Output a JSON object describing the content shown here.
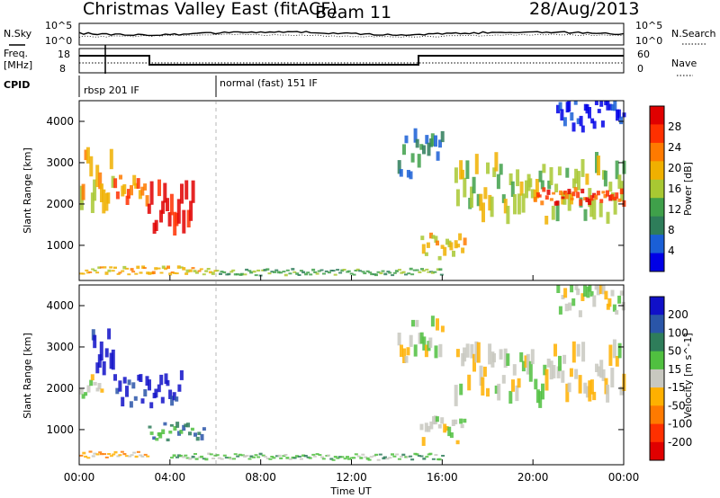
{
  "header": {
    "title": "Christmas Valley East (fitACF)",
    "beam": "Beam 11",
    "date": "28/Aug/2013"
  },
  "noise_panel": {
    "left_label": "N.Sky",
    "right_label": "N.Search",
    "left_ticks": [
      "10^5",
      "10^0"
    ],
    "right_ticks": [
      "10^5",
      "10^0"
    ]
  },
  "freq_panel": {
    "left_label_1": "Freq.",
    "left_label_2": "[MHz]",
    "left_ticks": [
      "18",
      "8"
    ],
    "right_ticks": [
      "60",
      "0"
    ],
    "right_label": "Nave"
  },
  "cpid": {
    "label": "CPID",
    "modes": [
      "rbsp 201 IF",
      "normal (fast) 151 IF"
    ]
  },
  "colors": {
    "power_scale": [
      "#0000e6",
      "#1a5fd6",
      "#2e7d5a",
      "#3fa04a",
      "#a8c832",
      "#f0b000",
      "#ff7a00",
      "#ff3000",
      "#e00000"
    ],
    "velocity_scale": [
      "#1010c8",
      "#2a55a8",
      "#2e7d5a",
      "#50c040",
      "#c8c8c0",
      "#ffb000",
      "#ff7a00",
      "#ff3000",
      "#e00000"
    ]
  },
  "chart_data": [
    {
      "type": "heatmap",
      "name_in_image": "Power",
      "ylabel": "Slant Range [km]",
      "y_ticks": [
        "1000",
        "2000",
        "3000",
        "4000"
      ],
      "ylim": [
        150,
        4500
      ],
      "colorbar_label": "Power [dB]",
      "colorbar_ticks": [
        "4",
        "8",
        "12",
        "16",
        "20",
        "24",
        "28"
      ],
      "blobs": [
        {
          "t0": 0.0,
          "t1": 1.5,
          "r0": 1700,
          "r1": 3300,
          "level": 5
        },
        {
          "t0": 1.5,
          "t1": 3.0,
          "r0": 1900,
          "r1": 2600,
          "level": 6
        },
        {
          "t0": 3.0,
          "t1": 5.0,
          "r0": 900,
          "r1": 2400,
          "level": 8
        },
        {
          "t0": 0.0,
          "t1": 6.0,
          "r0": 250,
          "r1": 450,
          "level": 5
        },
        {
          "t0": 6.0,
          "t1": 16.0,
          "r0": 250,
          "r1": 400,
          "level": 3
        },
        {
          "t0": 14.0,
          "t1": 16.0,
          "r0": 2600,
          "r1": 3500,
          "level": 2
        },
        {
          "t0": 16.5,
          "t1": 24.0,
          "r0": 1500,
          "r1": 2800,
          "level": 4
        },
        {
          "t0": 20.0,
          "t1": 24.0,
          "r0": 1900,
          "r1": 2300,
          "level": 7
        },
        {
          "t0": 15.0,
          "t1": 17.0,
          "r0": 600,
          "r1": 1200,
          "level": 5
        },
        {
          "t0": 21.0,
          "t1": 24.0,
          "r0": 3700,
          "r1": 4400,
          "level": 0
        }
      ]
    },
    {
      "type": "heatmap",
      "name_in_image": "Velocity",
      "ylabel": "Slant Range [km]",
      "y_ticks": [
        "1000",
        "2000",
        "3000",
        "4000"
      ],
      "ylim": [
        150,
        4500
      ],
      "colorbar_label": "Velocity [m s^-1]",
      "colorbar_ticks": [
        "200",
        "100",
        "50",
        "15",
        "-15",
        "-50",
        "-100",
        "-200"
      ],
      "x_ticks": [
        "00:00",
        "04:00",
        "08:00",
        "12:00",
        "16:00",
        "20:00",
        "00:00"
      ],
      "xlabel": "Time UT",
      "blobs": [
        {
          "t0": 0.5,
          "t1": 1.5,
          "r0": 2000,
          "r1": 3300,
          "level": 0
        },
        {
          "t0": 1.5,
          "t1": 4.5,
          "r0": 1500,
          "r1": 2200,
          "level": 0
        },
        {
          "t0": 0.0,
          "t1": 1.0,
          "r0": 1700,
          "r1": 2200,
          "level": 4
        },
        {
          "t0": 3.0,
          "t1": 5.5,
          "r0": 700,
          "r1": 1100,
          "level": 2
        },
        {
          "t0": 0.0,
          "t1": 3.0,
          "r0": 300,
          "r1": 450,
          "level": 5
        },
        {
          "t0": 4.0,
          "t1": 16.0,
          "r0": 250,
          "r1": 400,
          "level": 3
        },
        {
          "t0": 14.0,
          "t1": 16.0,
          "r0": 2600,
          "r1": 3500,
          "level": 4
        },
        {
          "t0": 16.5,
          "t1": 24.0,
          "r0": 1500,
          "r1": 2800,
          "level": 4
        },
        {
          "t0": 15.0,
          "t1": 17.0,
          "r0": 600,
          "r1": 1200,
          "level": 4
        },
        {
          "t0": 21.0,
          "t1": 24.0,
          "r0": 3700,
          "r1": 4400,
          "level": 4
        }
      ]
    }
  ]
}
